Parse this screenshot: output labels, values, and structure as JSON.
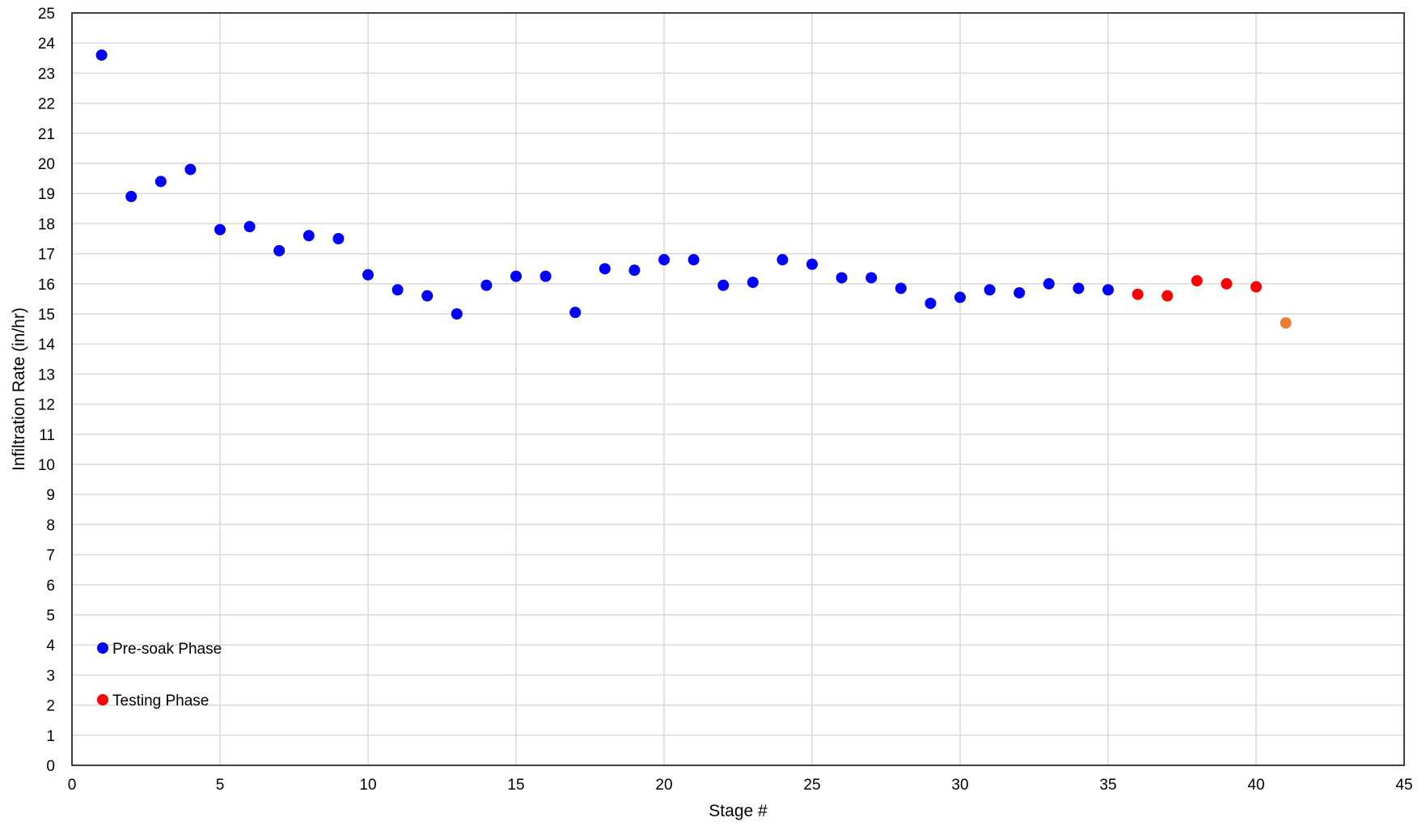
{
  "chart_data": {
    "type": "scatter",
    "title": "",
    "xlabel": "Stage #",
    "ylabel": "Infiltration Rate (in/hr)",
    "xlim": [
      0,
      45
    ],
    "ylim": [
      0,
      25
    ],
    "x_ticks": [
      0,
      5,
      10,
      15,
      20,
      25,
      30,
      35,
      40,
      45
    ],
    "y_ticks": [
      0,
      1,
      2,
      3,
      4,
      5,
      6,
      7,
      8,
      9,
      10,
      11,
      12,
      13,
      14,
      15,
      16,
      17,
      18,
      19,
      20,
      21,
      22,
      23,
      24,
      25
    ],
    "grid": true,
    "legend_position": "bottom-left",
    "series": [
      {
        "name": "Pre-soak Phase",
        "color": "#0000FF",
        "points": [
          {
            "x": 1,
            "y": 23.6
          },
          {
            "x": 2,
            "y": 18.9
          },
          {
            "x": 3,
            "y": 19.4
          },
          {
            "x": 4,
            "y": 19.8
          },
          {
            "x": 5,
            "y": 17.8
          },
          {
            "x": 6,
            "y": 17.9
          },
          {
            "x": 7,
            "y": 17.1
          },
          {
            "x": 8,
            "y": 17.6
          },
          {
            "x": 9,
            "y": 17.5
          },
          {
            "x": 10,
            "y": 16.3
          },
          {
            "x": 11,
            "y": 15.8
          },
          {
            "x": 12,
            "y": 15.6
          },
          {
            "x": 13,
            "y": 15.0
          },
          {
            "x": 14,
            "y": 15.95
          },
          {
            "x": 15,
            "y": 16.25
          },
          {
            "x": 16,
            "y": 16.25
          },
          {
            "x": 17,
            "y": 15.05
          },
          {
            "x": 18,
            "y": 16.5
          },
          {
            "x": 19,
            "y": 16.45
          },
          {
            "x": 20,
            "y": 16.8
          },
          {
            "x": 21,
            "y": 16.8
          },
          {
            "x": 22,
            "y": 15.95
          },
          {
            "x": 23,
            "y": 16.05
          },
          {
            "x": 24,
            "y": 16.8
          },
          {
            "x": 25,
            "y": 16.65
          },
          {
            "x": 26,
            "y": 16.2
          },
          {
            "x": 27,
            "y": 16.2
          },
          {
            "x": 28,
            "y": 15.85
          },
          {
            "x": 29,
            "y": 15.35
          },
          {
            "x": 30,
            "y": 15.55
          },
          {
            "x": 31,
            "y": 15.8
          },
          {
            "x": 32,
            "y": 15.7
          },
          {
            "x": 33,
            "y": 16.0
          },
          {
            "x": 34,
            "y": 15.85
          },
          {
            "x": 35,
            "y": 15.8
          }
        ]
      },
      {
        "name": "Testing Phase",
        "color": "#FF0000",
        "points": [
          {
            "x": 36,
            "y": 15.65
          },
          {
            "x": 37,
            "y": 15.6
          },
          {
            "x": 38,
            "y": 16.1
          },
          {
            "x": 39,
            "y": 16.0
          },
          {
            "x": 40,
            "y": 15.9
          }
        ]
      },
      {
        "color": "#ED7D31",
        "points": [
          {
            "x": 41,
            "y": 14.7
          }
        ]
      }
    ]
  }
}
